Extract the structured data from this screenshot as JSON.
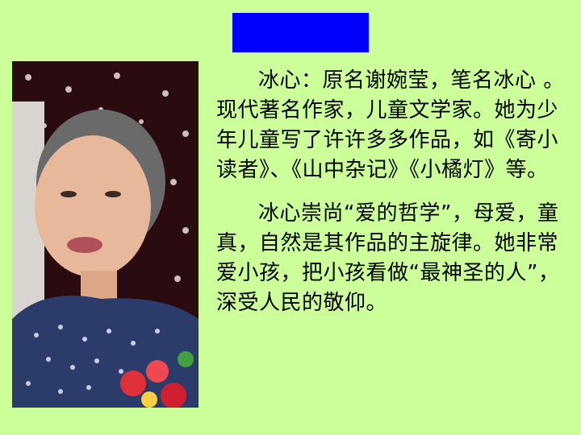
{
  "slide": {
    "title_box_color": "#0000ff",
    "background_color": "#ccff99"
  },
  "photo": {
    "icon": "portrait-photo"
  },
  "paragraphs": [
    "冰心：原名谢婉莹，笔名冰心 。现代著名作家，儿童文学家。她为少年儿童写了许许多多作品，如《寄小读者》、《山中杂记》《小橘灯》等。",
    "冰心崇尚“爱的哲学”，母爱，童真，自然是其作品的主旋律。她非常爱小孩，把小孩看做“最神圣的人”，深受人民的敬仰。"
  ]
}
